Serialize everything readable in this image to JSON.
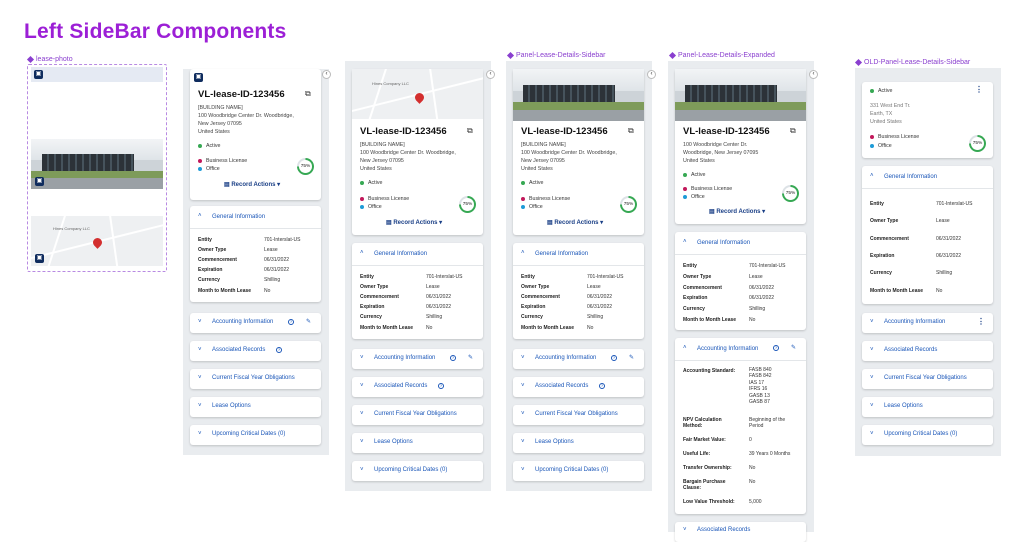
{
  "page_title": "Left SideBar Components",
  "frames": {
    "lease_photo": "lease-photo",
    "details_sidebar": "Panel-Lease-Details-Sidebar",
    "details_expanded": "Panel-Lease-Details-Expanded",
    "old_sidebar": "OLD-Panel-Lease-Details-Sidebar"
  },
  "lease": {
    "id": "VL-lease-ID-123456",
    "building": "[BUILDING NAME]",
    "address_line1": "100 Woodbridge Center Dr. Woodbridge,",
    "address_line1_short": "100 Woodbridge Center Dr.",
    "address_line2_a": "New Jersey 07095",
    "address_line2_b": "Woodbridge, New Jersey 07095",
    "country": "United States",
    "status": "Active",
    "category": "Business License",
    "type": "Office",
    "progress_label": "75%",
    "progress_value": 0.75,
    "record_actions": "Record Actions",
    "map_label": "Hines Company LLC"
  },
  "old": {
    "status": "Active",
    "addr1": "331 West End Tr.",
    "addr2": "Earth, TX",
    "addr3": "United States",
    "category": "Business License",
    "type": "Office",
    "progress_label": "75%"
  },
  "sections": {
    "general": "General Information",
    "accounting": "Accounting Information",
    "associated": "Associated Records",
    "fiscal": "Current Fiscal Year Obligations",
    "options": "Lease Options",
    "critical": "Upcoming Critical Dates (0)"
  },
  "general_rows": [
    {
      "k": "Entity",
      "v": "701-Interslat-US"
    },
    {
      "k": "Owner Type",
      "v": "Lease"
    },
    {
      "k": "Commencement",
      "v": "06/31/2022"
    },
    {
      "k": "Expiration",
      "v": "06/31/2022"
    },
    {
      "k": "Currency",
      "v": "Shilling"
    },
    {
      "k": "Month to Month Lease",
      "v": "No"
    }
  ],
  "accounting_rows": [
    {
      "k": "Accounting Standard:",
      "v1": "FASB 840",
      "v2": "FASB 842",
      "v3": "IAS 17",
      "v4": "IFRS 16",
      "v5": "GASB 13",
      "v6": "GASB 87"
    },
    {
      "k1": "NPV Calculation",
      "k2": "Method:",
      "v1": "Beginning of the",
      "v2": "Period"
    },
    {
      "k": "Fair Market Value:",
      "v": "0"
    },
    {
      "k": "Useful Life:",
      "v": "39 Years 0 Months"
    },
    {
      "k": "Transfer Ownership:",
      "v": "No"
    },
    {
      "k1": "Bargain Purchase",
      "k2": "Clause:",
      "v": "No"
    },
    {
      "k": "Low Value Threshold:",
      "v": "5,000"
    }
  ],
  "colors": {
    "accent": "#1a56b8",
    "title": "#9c1fd6",
    "active": "#36a853",
    "license": "#c2185b",
    "office": "#1e9bd7"
  }
}
